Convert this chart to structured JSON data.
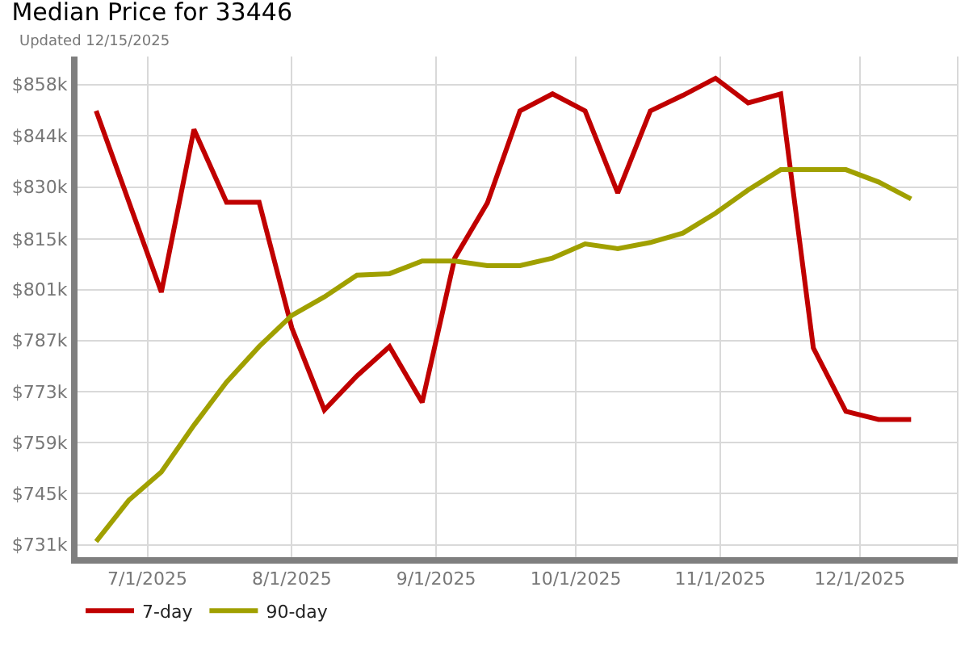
{
  "chart_data": {
    "type": "line",
    "title": "Median Price for 33446",
    "subtitle": "Updated 12/15/2025",
    "x": [
      "2025-06-20",
      "2025-06-27",
      "2025-07-04",
      "2025-07-11",
      "2025-07-18",
      "2025-07-25",
      "2025-08-01",
      "2025-08-08",
      "2025-08-15",
      "2025-08-22",
      "2025-08-29",
      "2025-09-05",
      "2025-09-12",
      "2025-09-19",
      "2025-09-26",
      "2025-10-03",
      "2025-10-10",
      "2025-10-17",
      "2025-10-24",
      "2025-10-31",
      "2025-11-07",
      "2025-11-14",
      "2025-11-21",
      "2025-11-28",
      "2025-12-05",
      "2025-12-12"
    ],
    "series": [
      {
        "name": "7-day",
        "color": "#c00000",
        "values": [
          850700,
          825700,
          800700,
          845600,
          825500,
          825500,
          790900,
          768200,
          777600,
          785700,
          770300,
          810100,
          825300,
          850700,
          855400,
          850700,
          828100,
          850700,
          855000,
          859700,
          852900,
          855400,
          785300,
          767800,
          765600,
          765600
        ]
      },
      {
        "name": "90-day",
        "color": "#a0a000",
        "values": [
          731900,
          743300,
          751100,
          764000,
          775900,
          785700,
          794300,
          799400,
          805400,
          805800,
          809300,
          809300,
          808000,
          808000,
          810100,
          814000,
          812700,
          814400,
          817000,
          822500,
          828900,
          834500,
          834500,
          834500,
          831100,
          826400
        ]
      }
    ],
    "xlim": [
      "2025-06-16",
      "2025-12-22"
    ],
    "xticks": [
      {
        "value": "2025-07-01",
        "label": "7/1/2025"
      },
      {
        "value": "2025-08-01",
        "label": "8/1/2025"
      },
      {
        "value": "2025-09-01",
        "label": "9/1/2025"
      },
      {
        "value": "2025-10-01",
        "label": "10/1/2025"
      },
      {
        "value": "2025-11-01",
        "label": "11/1/2025"
      },
      {
        "value": "2025-12-01",
        "label": "12/1/2025"
      }
    ],
    "ylim": [
      727600,
      865700
    ],
    "yticks": [
      {
        "value": 731000,
        "label": "$731k"
      },
      {
        "value": 745100,
        "label": "$745k"
      },
      {
        "value": 759200,
        "label": "$759k"
      },
      {
        "value": 773300,
        "label": "$773k"
      },
      {
        "value": 787400,
        "label": "$787k"
      },
      {
        "value": 801400,
        "label": "$801k"
      },
      {
        "value": 815400,
        "label": "$815k"
      },
      {
        "value": 829700,
        "label": "$830k"
      },
      {
        "value": 843800,
        "label": "$844k"
      },
      {
        "value": 858000,
        "label": "$858k"
      }
    ],
    "grid": true,
    "legend": "bottom left",
    "marker": "none",
    "line_style": "solid"
  }
}
